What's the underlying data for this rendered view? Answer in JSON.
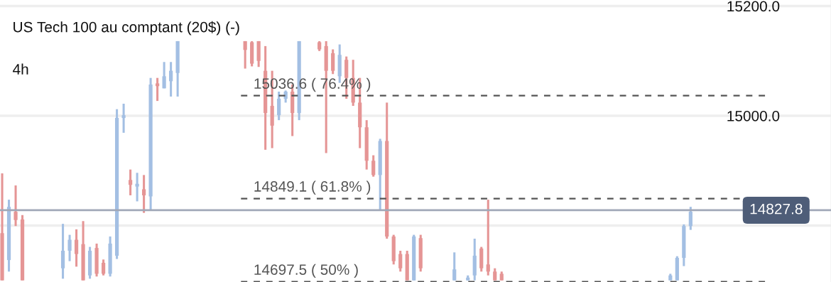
{
  "chart_data": {
    "type": "candlestick",
    "title": "US Tech 100 au comptant (20$) (-)",
    "annotations": [
      "4h"
    ],
    "categories": [
      null,
      null,
      null,
      null,
      null,
      null,
      null,
      null,
      null,
      null,
      null,
      null,
      null,
      null,
      null,
      null,
      null,
      null,
      null,
      null,
      null,
      null,
      null,
      null,
      null,
      null,
      null,
      null,
      null,
      null,
      null,
      null,
      null,
      null,
      null,
      null,
      null,
      null,
      null,
      null,
      null,
      null,
      null,
      null,
      null,
      null,
      null,
      null,
      null,
      null,
      null,
      null,
      null,
      null,
      null,
      null,
      null,
      null,
      null,
      null,
      null,
      null,
      null,
      null,
      null,
      null,
      null,
      null,
      null,
      null,
      null,
      null,
      null,
      null,
      null,
      null,
      null,
      null,
      null,
      null,
      null,
      null,
      null,
      null,
      null,
      null,
      null,
      null,
      null,
      null,
      null,
      null,
      null,
      null,
      null,
      null,
      null,
      null,
      null,
      null,
      null,
      null,
      null
    ],
    "ohlc": [
      [
        14786,
        14895,
        14700,
        14700
      ],
      [
        14737,
        14847,
        14716,
        14834
      ],
      [
        14825,
        14873,
        14799,
        14810
      ],
      [
        14811,
        14819,
        14700,
        14700
      ],
      null,
      null,
      null,
      null,
      null,
      [
        14722,
        14803,
        14703,
        14754
      ],
      [
        14754,
        14783,
        14735,
        14774
      ],
      [
        14774,
        14793,
        14725,
        14748
      ],
      [
        14766,
        14808,
        14700,
        14700
      ],
      [
        14709,
        14761,
        14703,
        14754
      ],
      [
        14759,
        14767,
        14707,
        14712
      ],
      [
        14732,
        14738,
        14709,
        14712
      ],
      [
        14712,
        14780,
        14707,
        14767
      ],
      [
        14745,
        15012,
        14739,
        14996
      ],
      [
        14996,
        15022,
        14969,
        15001
      ],
      [
        14883,
        14902,
        14855,
        14874
      ],
      [
        14871,
        14896,
        14844,
        14876
      ],
      [
        14866,
        14892,
        14823,
        14855
      ],
      [
        14853,
        15069,
        14829,
        15057
      ],
      [
        15059,
        15069,
        15027,
        15054
      ],
      [
        15050,
        15098,
        15050,
        15072
      ],
      [
        15063,
        15098,
        15035,
        15082
      ],
      [
        15078,
        15136,
        15035,
        15136
      ],
      null,
      null,
      null,
      null,
      null,
      null,
      null,
      null,
      null,
      [
        15136,
        15136,
        15086,
        15120
      ],
      [
        15134,
        15136,
        15090,
        15095
      ],
      [
        15136,
        15136,
        15089,
        15100
      ],
      [
        15082,
        15127,
        14938,
        15005
      ],
      [
        15018,
        15082,
        14941,
        14982
      ],
      [
        15001,
        15044,
        14992,
        15031
      ],
      [
        15031,
        15046,
        15024,
        15044
      ],
      [
        15044,
        15057,
        14963,
        15005
      ],
      [
        15005,
        15136,
        14992,
        15136
      ],
      null,
      null,
      [
        15134,
        15136,
        15118,
        15121
      ],
      [
        15127,
        15136,
        14932,
        15082
      ],
      [
        15114,
        15121,
        15076,
        15082
      ],
      [
        15072,
        15130,
        15060,
        15111
      ],
      [
        15102,
        15108,
        15031,
        15069
      ],
      [
        15069,
        15102,
        15018,
        15024
      ],
      [
        15024,
        15069,
        14941,
        14979
      ],
      [
        14979,
        14992,
        14902,
        14918
      ],
      [
        14918,
        14928,
        14889,
        14892
      ],
      [
        14892,
        14958,
        14828,
        14954
      ],
      [
        14954,
        15024,
        14776,
        14780
      ],
      [
        14780,
        14783,
        14729,
        14735
      ],
      [
        14748,
        14754,
        14716,
        14722
      ],
      [
        14748,
        14754,
        14700,
        14700
      ],
      [
        14700,
        14783,
        14700,
        14780
      ],
      [
        14777,
        14783,
        14716,
        14722
      ],
      null,
      null,
      null,
      null,
      [
        14700,
        14751,
        14700,
        14720
      ],
      null,
      [
        14700,
        14709,
        14700,
        14705
      ],
      [
        14709,
        14776,
        14700,
        14745
      ],
      [
        14758,
        14761,
        14716,
        14722
      ],
      [
        14729,
        14847,
        14709,
        14716
      ],
      [
        14716,
        14722,
        14700,
        14700
      ],
      [
        14712,
        14716,
        14700,
        14700
      ],
      null,
      null,
      null,
      null,
      null,
      null,
      null,
      null,
      null,
      null,
      null,
      null,
      null,
      null,
      null,
      null,
      null,
      null,
      null,
      null,
      null,
      null,
      null,
      null,
      [
        14700,
        14712,
        14700,
        14709
      ],
      [
        14700,
        14744,
        14700,
        14741
      ],
      [
        14741,
        14802,
        14726,
        14799
      ],
      [
        14799,
        14834,
        14792,
        14825
      ]
    ],
    "colors": [
      "#e59595",
      "#a3bfe3",
      "#e59595",
      "#e59595",
      null,
      null,
      null,
      null,
      null,
      "#a3bfe3",
      "#a3bfe3",
      "#e59595",
      "#e59595",
      "#a3bfe3",
      "#e59595",
      "#e59595",
      "#a3bfe3",
      "#a3bfe3",
      "#a3bfe3",
      "#e59595",
      "#a3bfe3",
      "#e59595",
      "#a3bfe3",
      "#e59595",
      "#a3bfe3",
      "#a3bfe3",
      "#a3bfe3",
      null,
      null,
      null,
      null,
      null,
      null,
      null,
      null,
      null,
      "#e59595",
      "#e59595",
      "#e59595",
      "#e59595",
      "#e59595",
      "#a3bfe3",
      "#a3bfe3",
      "#e59595",
      "#a3bfe3",
      null,
      null,
      "#e59595",
      "#e59595",
      "#e59595",
      "#a3bfe3",
      "#e59595",
      "#e59595",
      "#e59595",
      "#e59595",
      "#e59595",
      "#a3bfe3",
      "#e59595",
      "#e59595",
      "#e59595",
      "#e59595",
      "#a3bfe3",
      "#e59595",
      null,
      null,
      null,
      null,
      "#a3bfe3",
      null,
      "#a3bfe3",
      "#a3bfe3",
      "#e59595",
      "#e59595",
      "#e59595",
      "#e59595",
      null,
      null,
      null,
      null,
      null,
      null,
      null,
      null,
      null,
      null,
      null,
      null,
      null,
      null,
      null,
      null,
      null,
      null,
      null,
      null,
      null,
      null,
      null,
      null,
      "#a3bfe3",
      "#a3bfe3",
      "#a3bfe3",
      "#a3bfe3"
    ],
    "ylim": [
      14697,
      15211
    ],
    "yticks": [
      {
        "value": 14800,
        "label": null
      },
      {
        "value": 15000,
        "label": "15000.0"
      },
      {
        "value": 15200,
        "label": "15200.0"
      }
    ],
    "tick_labels": "y",
    "grid": "y",
    "ref_lines": [
      {
        "axis": "y",
        "value": 15036.6,
        "label": "15036.6 ( 76.4% )",
        "color": "#555555",
        "line_style": "dashed"
      },
      {
        "axis": "y",
        "value": 14849.1,
        "label": "14849.1 ( 61.8% )",
        "color": "#555555",
        "line_style": "dashed"
      },
      {
        "axis": "y",
        "value": 14697.5,
        "label": "14697.5 ( 50% )",
        "color": "#555555",
        "line_style": "dashed"
      },
      {
        "axis": "y",
        "value": 14827.8,
        "label": "14827.8",
        "color": "#a1a8b8",
        "line_style": "solid"
      }
    ]
  }
}
